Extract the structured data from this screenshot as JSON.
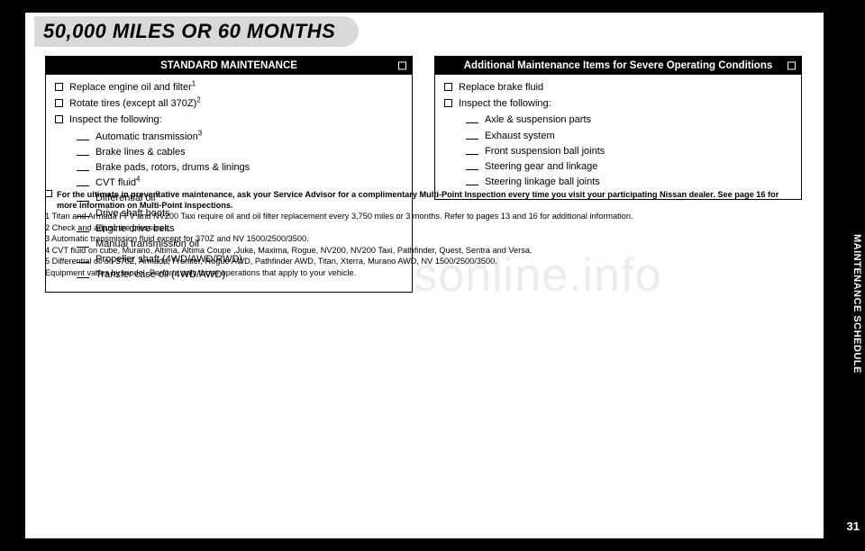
{
  "heading": "50,000 MILES OR 60 MONTHS",
  "sideTab": {
    "label": "MAINTENANCE SCHEDULE",
    "pageNumber": "31"
  },
  "watermark": "carmanualsonline.info",
  "panels": {
    "standard": {
      "title": "STANDARD MAINTENANCE",
      "topItems": [
        {
          "text": "Replace engine oil and filter",
          "sup": "1"
        },
        {
          "text": "Rotate tires (except all 370Z)",
          "sup": "2"
        },
        {
          "text": "Inspect the following:"
        }
      ],
      "subItems": [
        {
          "text": "Automatic transmission",
          "sup": "3"
        },
        {
          "text": "Brake lines & cables"
        },
        {
          "text": "Brake pads, rotors, drums & linings"
        },
        {
          "text": "CVT fluid",
          "sup": "4"
        },
        {
          "text": "Differential oil",
          "sup": "5"
        },
        {
          "text": "Drive shaft boots"
        },
        {
          "text": "Engine drive belts"
        },
        {
          "text": "Manual transmission oil"
        },
        {
          "text": "Propeller shaft (4WD/AWD/RWD)"
        },
        {
          "text": "Transfer case oil (4WD/AWD)"
        }
      ]
    },
    "severe": {
      "title": "Additional Maintenance Items for Severe Operating Conditions",
      "topItems": [
        {
          "text": "Replace brake fluid"
        },
        {
          "text": "Inspect the following:"
        }
      ],
      "subItems": [
        {
          "text": "Axle & suspension parts"
        },
        {
          "text": "Exhaust system"
        },
        {
          "text": "Front suspension ball joints"
        },
        {
          "text": "Steering gear and linkage"
        },
        {
          "text": "Steering linkage ball joints"
        }
      ]
    }
  },
  "notes": {
    "lead": "For the ultimate in preventative maintenance, ask your Service Advisor for a complimentary Multi-Point Inspection every time you visit your participating Nissan dealer. See page 16 for more information on Multi-Point Inspections.",
    "footnotes": [
      "1 Titan and Armada FFV and NV200 Taxi require oil and oil filter replacement every 3,750 miles or 3 months. Refer to pages 13 and 16 for additional information.",
      "2 Check and adjust tire pressures.",
      "3 Automatic transmission fluid except for 370Z and NV 1500/2500/3500.",
      "4 CVT fluid on cube, Murano, Altima, Altima Coupe ,Juke, Maxima, Rogue, NV200, NV200 Taxi, Pathfinder, Quest, Sentra and Versa.",
      "5 Differential oil on 370Z, Armada, Frontier, Rogue AWD, Pathfinder AWD, Titan, Xterra, Murano AWD, NV 1500/2500/3500.",
      "Equipment varies by model. Perform only those operations that apply to your vehicle."
    ]
  },
  "colors": {
    "pageBg": "#ffffff",
    "outerBg": "#000000",
    "tabBg": "#d9d9d9",
    "watermark": "#ececec"
  }
}
